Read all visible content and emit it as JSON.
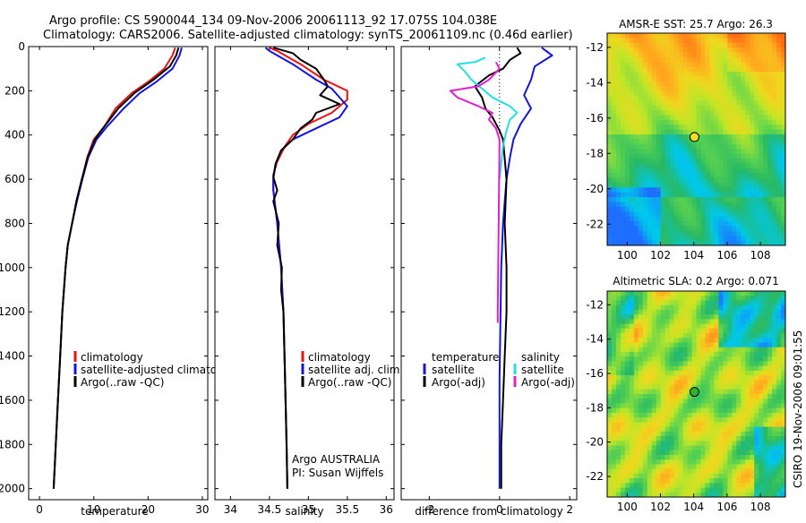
{
  "title_line1": "Argo profile: CS 5900044_134 09-Nov-2006 20061113_92 17.075S 104.038E",
  "title_line2": "Climatology: CARS2006. Satellite-adjusted climatology: synTS_20061109.nc (0.46d earlier)",
  "side_label": "CSIRO 19-Nov-2006 09:01:55",
  "colors": {
    "climatology": "#ee1111",
    "satellite": "#1414e0",
    "argo": "#000000",
    "sal_satellite": "#22e0e0",
    "sal_argo": "#e020d0",
    "marker_sst": "#f0e020",
    "marker_sla": "#30b030"
  },
  "chart_data": [
    {
      "id": "temperature",
      "type": "line",
      "xlabel": "temperature",
      "xlim": [
        -2,
        31
      ],
      "ylim": [
        2050,
        0
      ],
      "xticks": [
        0,
        10,
        20,
        30
      ],
      "yticks": [
        0,
        200,
        400,
        600,
        800,
        1000,
        1200,
        1400,
        1600,
        1800,
        2000
      ],
      "legend": [
        "climatology",
        "satellite-adjusted climatology",
        "Argo(..raw -QC)"
      ],
      "series": [
        {
          "name": "climatology",
          "color": "#ee1111",
          "points": [
            [
              25.0,
              5
            ],
            [
              24.5,
              40
            ],
            [
              23.0,
              100
            ],
            [
              20.0,
              160
            ],
            [
              17.0,
              210
            ],
            [
              14.0,
              280
            ],
            [
              12.0,
              360
            ],
            [
              10.0,
              420
            ],
            [
              8.8,
              500
            ],
            [
              7.8,
              600
            ],
            [
              6.8,
              700
            ],
            [
              6.0,
              800
            ],
            [
              5.2,
              900
            ],
            [
              4.8,
              1000
            ],
            [
              4.2,
              1200
            ],
            [
              3.8,
              1400
            ],
            [
              3.4,
              1600
            ],
            [
              3.0,
              1800
            ],
            [
              2.6,
              2000
            ]
          ]
        },
        {
          "name": "satellite-adjusted climatology",
          "color": "#1414e0",
          "points": [
            [
              26.2,
              5
            ],
            [
              25.8,
              40
            ],
            [
              24.5,
              100
            ],
            [
              21.5,
              160
            ],
            [
              18.5,
              210
            ],
            [
              15.5,
              280
            ],
            [
              12.5,
              360
            ],
            [
              10.5,
              420
            ],
            [
              9.0,
              500
            ],
            [
              7.9,
              600
            ],
            [
              6.9,
              700
            ],
            [
              6.0,
              800
            ],
            [
              5.2,
              900
            ],
            [
              4.8,
              1000
            ],
            [
              4.2,
              1200
            ],
            [
              3.8,
              1400
            ],
            [
              3.4,
              1600
            ],
            [
              3.0,
              1800
            ],
            [
              2.6,
              2000
            ]
          ]
        },
        {
          "name": "Argo(..raw -QC)",
          "color": "#000000",
          "points": [
            [
              25.6,
              5
            ],
            [
              25.2,
              40
            ],
            [
              24.0,
              90
            ],
            [
              21.0,
              150
            ],
            [
              17.5,
              210
            ],
            [
              14.5,
              280
            ],
            [
              12.0,
              360
            ],
            [
              10.2,
              420
            ],
            [
              8.9,
              500
            ],
            [
              7.8,
              600
            ],
            [
              6.8,
              700
            ],
            [
              6.0,
              800
            ],
            [
              5.2,
              900
            ],
            [
              4.8,
              1000
            ],
            [
              4.2,
              1200
            ],
            [
              3.8,
              1400
            ],
            [
              3.4,
              1600
            ],
            [
              3.0,
              1800
            ],
            [
              2.6,
              2000
            ]
          ]
        }
      ]
    },
    {
      "id": "salinity",
      "type": "line",
      "xlabel": "salinity",
      "xlim": [
        33.8,
        36.1
      ],
      "ylim": [
        2050,
        0
      ],
      "xticks": [
        34,
        34.5,
        35,
        35.5,
        36
      ],
      "legend": [
        "climatology",
        "satellite adj. clim.",
        "Argo(..raw -QC)"
      ],
      "annotation": [
        "Argo AUSTRALIA",
        "PI: Susan Wijffels"
      ],
      "series": [
        {
          "name": "climatology",
          "color": "#ee1111",
          "points": [
            [
              34.5,
              5
            ],
            [
              34.6,
              20
            ],
            [
              34.7,
              40
            ],
            [
              34.9,
              80
            ],
            [
              35.2,
              150
            ],
            [
              35.5,
              200
            ],
            [
              35.5,
              240
            ],
            [
              35.3,
              300
            ],
            [
              35.0,
              350
            ],
            [
              34.8,
              400
            ],
            [
              34.7,
              450
            ],
            [
              34.6,
              520
            ],
            [
              34.55,
              580
            ],
            [
              34.55,
              650
            ],
            [
              34.6,
              800
            ],
            [
              34.65,
              1000
            ],
            [
              34.68,
              1200
            ],
            [
              34.7,
              1500
            ],
            [
              34.72,
              1800
            ],
            [
              34.73,
              2000
            ]
          ]
        },
        {
          "name": "satellite adj. clim.",
          "color": "#1414e0",
          "points": [
            [
              34.45,
              5
            ],
            [
              34.5,
              20
            ],
            [
              34.6,
              40
            ],
            [
              34.8,
              80
            ],
            [
              35.1,
              150
            ],
            [
              35.3,
              190
            ],
            [
              35.5,
              270
            ],
            [
              35.4,
              320
            ],
            [
              35.1,
              370
            ],
            [
              34.8,
              420
            ],
            [
              34.65,
              470
            ],
            [
              34.58,
              530
            ],
            [
              34.55,
              600
            ],
            [
              34.55,
              650
            ],
            [
              34.6,
              800
            ],
            [
              34.65,
              1000
            ],
            [
              34.68,
              1200
            ],
            [
              34.7,
              1500
            ],
            [
              34.72,
              1800
            ],
            [
              34.73,
              2000
            ]
          ]
        },
        {
          "name": "Argo(..raw -QC)",
          "color": "#000000",
          "points": [
            [
              34.55,
              5
            ],
            [
              34.7,
              20
            ],
            [
              34.8,
              30
            ],
            [
              34.9,
              60
            ],
            [
              35.1,
              100
            ],
            [
              35.2,
              150
            ],
            [
              35.25,
              180
            ],
            [
              35.15,
              220
            ],
            [
              35.4,
              260
            ],
            [
              35.1,
              300
            ],
            [
              35.05,
              330
            ],
            [
              34.9,
              370
            ],
            [
              34.8,
              420
            ],
            [
              34.65,
              470
            ],
            [
              34.58,
              530
            ],
            [
              34.55,
              590
            ],
            [
              34.6,
              650
            ],
            [
              34.55,
              700
            ],
            [
              34.62,
              800
            ],
            [
              34.6,
              900
            ],
            [
              34.66,
              1000
            ],
            [
              34.65,
              1100
            ],
            [
              34.68,
              1200
            ],
            [
              34.7,
              1500
            ],
            [
              34.72,
              1800
            ],
            [
              34.73,
              2000
            ]
          ]
        }
      ]
    },
    {
      "id": "difference",
      "type": "line",
      "xlabel": "difference from climatology",
      "xlim": [
        -2.8,
        2.2
      ],
      "ylim": [
        2050,
        0
      ],
      "xticks": [
        -2,
        0,
        2
      ],
      "legend_left": {
        "title": "temperature",
        "items": [
          "satellite",
          "Argo(-adj)"
        ]
      },
      "legend_right": {
        "title": "salinity",
        "items": [
          "satellite",
          "Argo(-adj)"
        ]
      },
      "series": [
        {
          "name": "temperature satellite",
          "color": "#1414e0",
          "points": [
            [
              1.2,
              5
            ],
            [
              1.5,
              40
            ],
            [
              1.0,
              90
            ],
            [
              0.9,
              150
            ],
            [
              0.7,
              220
            ],
            [
              0.9,
              280
            ],
            [
              0.6,
              350
            ],
            [
              0.4,
              420
            ],
            [
              0.3,
              500
            ],
            [
              0.2,
              600
            ],
            [
              0.1,
              800
            ],
            [
              0.05,
              1000
            ],
            [
              0.0,
              1500
            ],
            [
              0.0,
              2000
            ]
          ]
        },
        {
          "name": "temperature Argo(-adj)",
          "color": "#000000",
          "points": [
            [
              0.5,
              5
            ],
            [
              0.6,
              30
            ],
            [
              0.3,
              60
            ],
            [
              0.1,
              100
            ],
            [
              -0.3,
              130
            ],
            [
              -0.7,
              180
            ],
            [
              -0.5,
              230
            ],
            [
              -0.4,
              280
            ],
            [
              -0.2,
              320
            ],
            [
              0.0,
              380
            ],
            [
              0.1,
              420
            ],
            [
              0.2,
              600
            ],
            [
              0.15,
              800
            ],
            [
              0.2,
              1000
            ],
            [
              0.2,
              1200
            ],
            [
              0.15,
              1400
            ],
            [
              0.1,
              1600
            ],
            [
              0.05,
              1800
            ],
            [
              0.05,
              2000
            ]
          ]
        },
        {
          "name": "salinity satellite",
          "color": "#22e0e0",
          "points": [
            [
              -0.4,
              50
            ],
            [
              -0.7,
              70
            ],
            [
              -1.2,
              80
            ],
            [
              -1.0,
              110
            ],
            [
              -0.8,
              150
            ],
            [
              -0.5,
              190
            ],
            [
              -0.2,
              230
            ],
            [
              0.3,
              270
            ],
            [
              0.5,
              300
            ],
            [
              0.3,
              330
            ],
            [
              0.2,
              380
            ],
            [
              0.1,
              450
            ],
            [
              0.0,
              600
            ]
          ]
        },
        {
          "name": "salinity Argo(-adj)",
          "color": "#e020d0",
          "points": [
            [
              -0.1,
              70
            ],
            [
              0.0,
              100
            ],
            [
              -0.3,
              150
            ],
            [
              -0.6,
              180
            ],
            [
              -1.0,
              190
            ],
            [
              -1.4,
              200
            ],
            [
              -1.2,
              230
            ],
            [
              -0.6,
              270
            ],
            [
              -0.2,
              300
            ],
            [
              -0.3,
              330
            ],
            [
              -0.1,
              370
            ],
            [
              0.0,
              420
            ],
            [
              -0.05,
              1200
            ],
            [
              -0.05,
              1250
            ]
          ]
        }
      ]
    },
    {
      "id": "sst-map",
      "type": "heatmap",
      "title": "AMSR-E SST: 25.7 Argo: 26.3",
      "xlim": [
        98.8,
        109.5
      ],
      "ylim": [
        -23.2,
        -11.2
      ],
      "xticks": [
        100,
        102,
        104,
        106,
        108
      ],
      "yticks": [
        -12,
        -14,
        -16,
        -18,
        -20,
        -22
      ],
      "marker": [
        104.038,
        -17.075
      ]
    },
    {
      "id": "sla-map",
      "type": "heatmap",
      "title": "Altimetric SLA: 0.2 Argo: 0.071",
      "xlim": [
        98.8,
        109.5
      ],
      "ylim": [
        -23.2,
        -11.2
      ],
      "xticks": [
        100,
        102,
        104,
        106,
        108
      ],
      "yticks": [
        -12,
        -14,
        -16,
        -18,
        -20,
        -22
      ],
      "marker": [
        104.038,
        -17.075
      ]
    }
  ]
}
